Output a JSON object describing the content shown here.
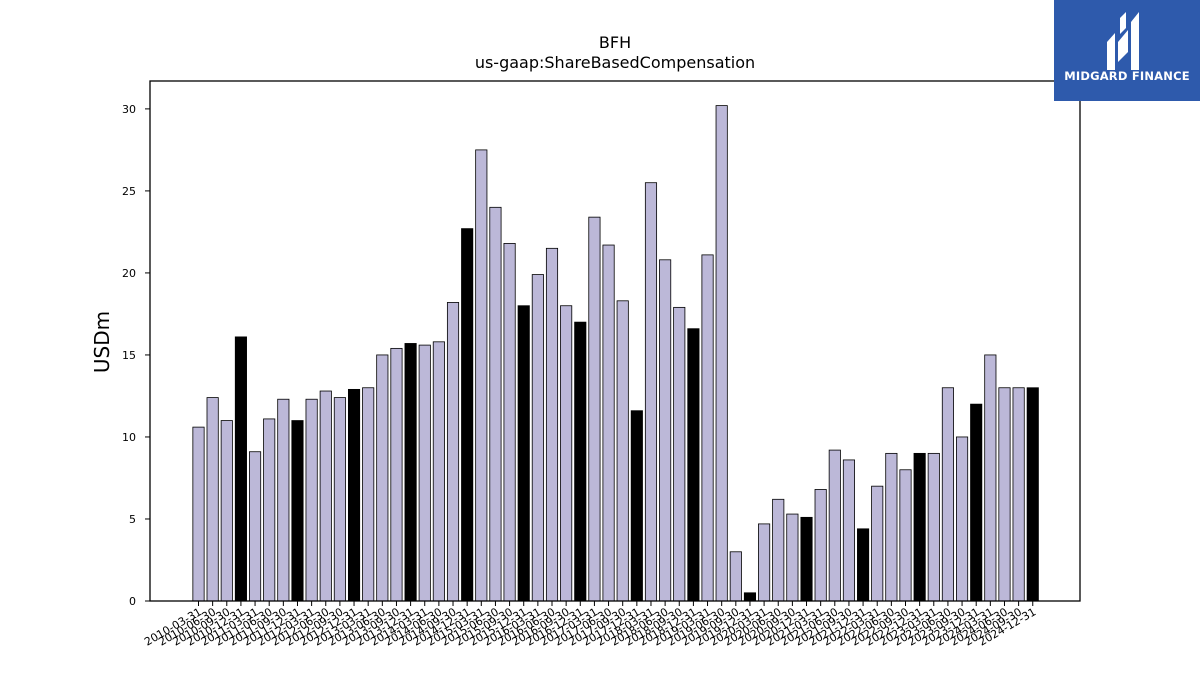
{
  "brand": {
    "name": "MIDGARD FINANCE",
    "logo_icon": "midgard-logo-icon",
    "background_color": "#2e5aac",
    "text_color": "#ffffff"
  },
  "chart_data": {
    "type": "bar",
    "title": "BFH",
    "subtitle": "us-gaap:ShareBasedCompensation",
    "xlabel": "",
    "ylabel": "USDm",
    "ylim": [
      0,
      31.7
    ],
    "yticks": [
      0,
      5,
      10,
      15,
      20,
      25,
      30
    ],
    "grid": false,
    "legend": "none",
    "colors": {
      "quarterly": "#bcb8d8",
      "fiscal_year_end": "#000000",
      "edge": "#000000"
    },
    "categories": [
      "2010-03-31",
      "2010-06-30",
      "2010-09-30",
      "2010-12-31",
      "2011-03-31",
      "2011-06-30",
      "2011-09-30",
      "2011-12-31",
      "2012-03-31",
      "2012-06-30",
      "2012-09-30",
      "2012-12-31",
      "2013-03-31",
      "2013-06-30",
      "2013-09-30",
      "2013-12-31",
      "2014-03-31",
      "2014-06-30",
      "2014-09-30",
      "2014-12-31",
      "2015-03-31",
      "2015-06-30",
      "2015-09-30",
      "2015-12-31",
      "2016-03-31",
      "2016-06-30",
      "2016-09-30",
      "2016-12-31",
      "2017-03-31",
      "2017-06-30",
      "2017-09-30",
      "2017-12-31",
      "2018-03-31",
      "2018-06-30",
      "2018-09-30",
      "2018-12-31",
      "2019-03-31",
      "2019-06-30",
      "2019-09-30",
      "2019-12-31",
      "2020-03-31",
      "2020-06-30",
      "2020-09-30",
      "2020-12-31",
      "2021-03-31",
      "2021-06-30",
      "2021-09-30",
      "2021-12-31",
      "2022-03-31",
      "2022-06-30",
      "2022-09-30",
      "2022-12-31",
      "2023-03-31",
      "2023-06-30",
      "2023-09-30",
      "2023-12-31",
      "2024-03-31",
      "2024-06-30",
      "2024-09-30",
      "2024-12-31"
    ],
    "values": [
      10.6,
      12.4,
      11.0,
      16.1,
      9.1,
      11.1,
      12.3,
      11.0,
      12.3,
      12.8,
      12.4,
      12.9,
      13.0,
      15.0,
      15.4,
      15.7,
      15.6,
      15.8,
      18.2,
      22.7,
      27.5,
      24.0,
      21.8,
      18.0,
      19.9,
      21.5,
      18.0,
      17.0,
      23.4,
      21.7,
      18.3,
      11.6,
      25.5,
      20.8,
      17.9,
      16.6,
      21.1,
      30.2,
      3.0,
      0.5,
      4.7,
      6.2,
      5.3,
      5.1,
      6.8,
      9.2,
      8.6,
      4.4,
      7.0,
      9.0,
      8.0,
      9.0,
      9.0,
      13.0,
      10.0,
      12.0,
      15.0,
      13.0,
      13.0,
      13.0
    ]
  }
}
